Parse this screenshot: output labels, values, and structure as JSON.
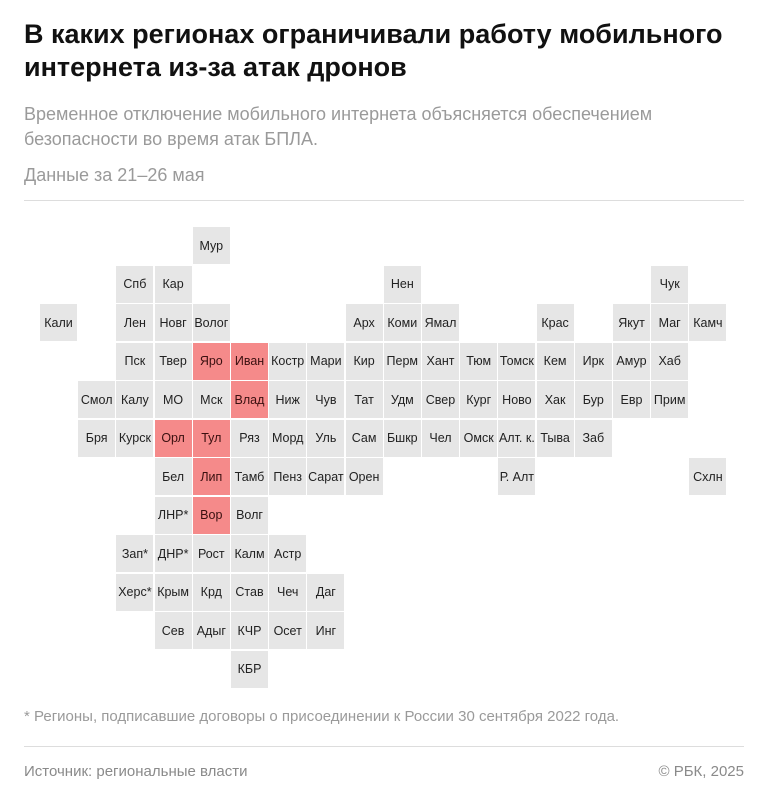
{
  "title": "В каких регионах ограничивали работу мобильного интернета из-за атак дронов",
  "subtitle": "Временное отключение мобильного интернета объясняется обеспечением безопасности во время атак БПЛА.",
  "date_note": "Данные за 21–26 мая",
  "colors": {
    "restricted": "#f58a8a",
    "normal": "#e6e6e6"
  },
  "regions": [
    {
      "label": "Мур",
      "row": 0,
      "col": 4,
      "restricted": false
    },
    {
      "label": "Спб",
      "row": 1,
      "col": 2,
      "restricted": false
    },
    {
      "label": "Кар",
      "row": 1,
      "col": 3,
      "restricted": false
    },
    {
      "label": "Нен",
      "row": 1,
      "col": 9,
      "restricted": false
    },
    {
      "label": "Чук",
      "row": 1,
      "col": 16,
      "restricted": false
    },
    {
      "label": "Кали",
      "row": 2,
      "col": 0,
      "restricted": false
    },
    {
      "label": "Лен",
      "row": 2,
      "col": 2,
      "restricted": false
    },
    {
      "label": "Новг",
      "row": 2,
      "col": 3,
      "restricted": false
    },
    {
      "label": "Волог",
      "row": 2,
      "col": 4,
      "restricted": false
    },
    {
      "label": "Арх",
      "row": 2,
      "col": 8,
      "restricted": false
    },
    {
      "label": "Коми",
      "row": 2,
      "col": 9,
      "restricted": false
    },
    {
      "label": "Ямал",
      "row": 2,
      "col": 10,
      "restricted": false
    },
    {
      "label": "Крас",
      "row": 2,
      "col": 13,
      "restricted": false
    },
    {
      "label": "Якут",
      "row": 2,
      "col": 15,
      "restricted": false
    },
    {
      "label": "Маг",
      "row": 2,
      "col": 16,
      "restricted": false
    },
    {
      "label": "Камч",
      "row": 2,
      "col": 17,
      "restricted": false
    },
    {
      "label": "Пск",
      "row": 3,
      "col": 2,
      "restricted": false
    },
    {
      "label": "Твер",
      "row": 3,
      "col": 3,
      "restricted": false
    },
    {
      "label": "Яро",
      "row": 3,
      "col": 4,
      "restricted": true
    },
    {
      "label": "Иван",
      "row": 3,
      "col": 5,
      "restricted": true
    },
    {
      "label": "Костр",
      "row": 3,
      "col": 6,
      "restricted": false
    },
    {
      "label": "Мари",
      "row": 3,
      "col": 7,
      "restricted": false
    },
    {
      "label": "Кир",
      "row": 3,
      "col": 8,
      "restricted": false
    },
    {
      "label": "Перм",
      "row": 3,
      "col": 9,
      "restricted": false
    },
    {
      "label": "Хант",
      "row": 3,
      "col": 10,
      "restricted": false
    },
    {
      "label": "Тюм",
      "row": 3,
      "col": 11,
      "restricted": false
    },
    {
      "label": "Томск",
      "row": 3,
      "col": 12,
      "restricted": false
    },
    {
      "label": "Кем",
      "row": 3,
      "col": 13,
      "restricted": false
    },
    {
      "label": "Ирк",
      "row": 3,
      "col": 14,
      "restricted": false
    },
    {
      "label": "Амур",
      "row": 3,
      "col": 15,
      "restricted": false
    },
    {
      "label": "Хаб",
      "row": 3,
      "col": 16,
      "restricted": false
    },
    {
      "label": "Смол",
      "row": 4,
      "col": 1,
      "restricted": false
    },
    {
      "label": "Калу",
      "row": 4,
      "col": 2,
      "restricted": false
    },
    {
      "label": "МО",
      "row": 4,
      "col": 3,
      "restricted": false
    },
    {
      "label": "Мск",
      "row": 4,
      "col": 4,
      "restricted": false
    },
    {
      "label": "Влад",
      "row": 4,
      "col": 5,
      "restricted": true
    },
    {
      "label": "Ниж",
      "row": 4,
      "col": 6,
      "restricted": false
    },
    {
      "label": "Чув",
      "row": 4,
      "col": 7,
      "restricted": false
    },
    {
      "label": "Тат",
      "row": 4,
      "col": 8,
      "restricted": false
    },
    {
      "label": "Удм",
      "row": 4,
      "col": 9,
      "restricted": false
    },
    {
      "label": "Свер",
      "row": 4,
      "col": 10,
      "restricted": false
    },
    {
      "label": "Кург",
      "row": 4,
      "col": 11,
      "restricted": false
    },
    {
      "label": "Ново",
      "row": 4,
      "col": 12,
      "restricted": false
    },
    {
      "label": "Хак",
      "row": 4,
      "col": 13,
      "restricted": false
    },
    {
      "label": "Бур",
      "row": 4,
      "col": 14,
      "restricted": false
    },
    {
      "label": "Евр",
      "row": 4,
      "col": 15,
      "restricted": false
    },
    {
      "label": "Прим",
      "row": 4,
      "col": 16,
      "restricted": false
    },
    {
      "label": "Бря",
      "row": 5,
      "col": 1,
      "restricted": false
    },
    {
      "label": "Курск",
      "row": 5,
      "col": 2,
      "restricted": false
    },
    {
      "label": "Орл",
      "row": 5,
      "col": 3,
      "restricted": true
    },
    {
      "label": "Тул",
      "row": 5,
      "col": 4,
      "restricted": true
    },
    {
      "label": "Ряз",
      "row": 5,
      "col": 5,
      "restricted": false
    },
    {
      "label": "Морд",
      "row": 5,
      "col": 6,
      "restricted": false
    },
    {
      "label": "Уль",
      "row": 5,
      "col": 7,
      "restricted": false
    },
    {
      "label": "Сам",
      "row": 5,
      "col": 8,
      "restricted": false
    },
    {
      "label": "Бшкр",
      "row": 5,
      "col": 9,
      "restricted": false
    },
    {
      "label": "Чел",
      "row": 5,
      "col": 10,
      "restricted": false
    },
    {
      "label": "Омск",
      "row": 5,
      "col": 11,
      "restricted": false
    },
    {
      "label": "Алт. к.",
      "row": 5,
      "col": 12,
      "restricted": false
    },
    {
      "label": "Тыва",
      "row": 5,
      "col": 13,
      "restricted": false
    },
    {
      "label": "Заб",
      "row": 5,
      "col": 14,
      "restricted": false
    },
    {
      "label": "Бел",
      "row": 6,
      "col": 3,
      "restricted": false
    },
    {
      "label": "Лип",
      "row": 6,
      "col": 4,
      "restricted": true
    },
    {
      "label": "Тамб",
      "row": 6,
      "col": 5,
      "restricted": false
    },
    {
      "label": "Пенз",
      "row": 6,
      "col": 6,
      "restricted": false
    },
    {
      "label": "Сарат",
      "row": 6,
      "col": 7,
      "restricted": false
    },
    {
      "label": "Орен",
      "row": 6,
      "col": 8,
      "restricted": false
    },
    {
      "label": "Р. Алт",
      "row": 6,
      "col": 12,
      "restricted": false
    },
    {
      "label": "Схлн",
      "row": 6,
      "col": 17,
      "restricted": false
    },
    {
      "label": "ЛНР*",
      "row": 7,
      "col": 3,
      "restricted": false
    },
    {
      "label": "Вор",
      "row": 7,
      "col": 4,
      "restricted": true
    },
    {
      "label": "Волг",
      "row": 7,
      "col": 5,
      "restricted": false
    },
    {
      "label": "Зап*",
      "row": 8,
      "col": 2,
      "restricted": false
    },
    {
      "label": "ДНР*",
      "row": 8,
      "col": 3,
      "restricted": false
    },
    {
      "label": "Рост",
      "row": 8,
      "col": 4,
      "restricted": false
    },
    {
      "label": "Калм",
      "row": 8,
      "col": 5,
      "restricted": false
    },
    {
      "label": "Астр",
      "row": 8,
      "col": 6,
      "restricted": false
    },
    {
      "label": "Херс*",
      "row": 9,
      "col": 2,
      "restricted": false
    },
    {
      "label": "Крым",
      "row": 9,
      "col": 3,
      "restricted": false
    },
    {
      "label": "Крд",
      "row": 9,
      "col": 4,
      "restricted": false
    },
    {
      "label": "Став",
      "row": 9,
      "col": 5,
      "restricted": false
    },
    {
      "label": "Чеч",
      "row": 9,
      "col": 6,
      "restricted": false
    },
    {
      "label": "Даг",
      "row": 9,
      "col": 7,
      "restricted": false
    },
    {
      "label": "Сев",
      "row": 10,
      "col": 3,
      "restricted": false
    },
    {
      "label": "Адыг",
      "row": 10,
      "col": 4,
      "restricted": false
    },
    {
      "label": "КЧР",
      "row": 10,
      "col": 5,
      "restricted": false
    },
    {
      "label": "Осет",
      "row": 10,
      "col": 6,
      "restricted": false
    },
    {
      "label": "Инг",
      "row": 10,
      "col": 7,
      "restricted": false
    },
    {
      "label": "КБР",
      "row": 11,
      "col": 5,
      "restricted": false
    }
  ],
  "footnote": "* Регионы, подписавшие договоры о присоединении к России 30 сентября 2022 года.",
  "source": "Источник: региональные власти",
  "copyright": "© РБК, 2025"
}
